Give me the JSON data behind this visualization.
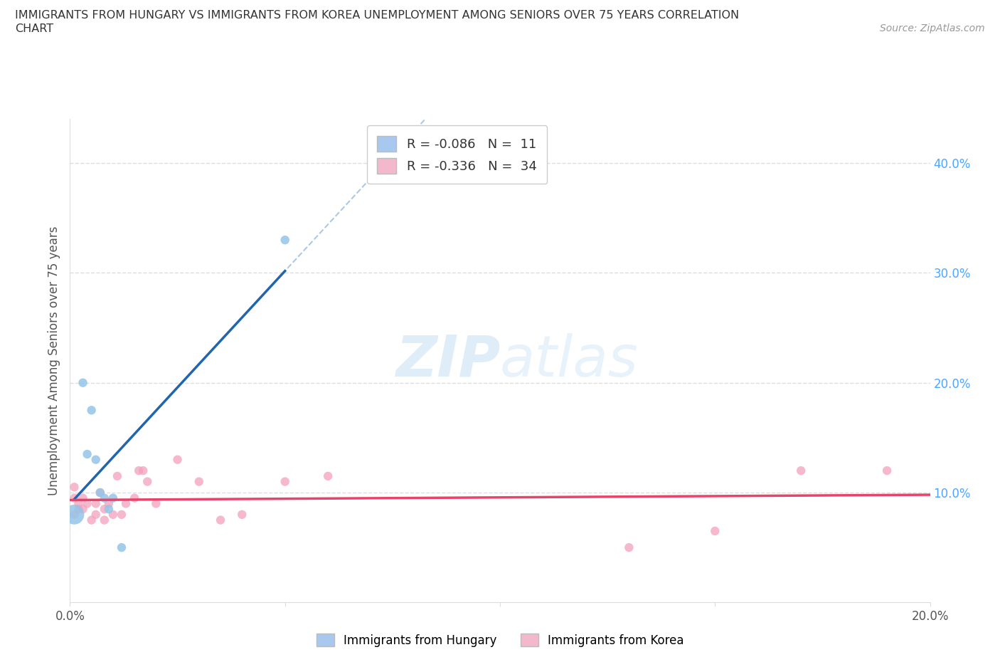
{
  "title_line1": "IMMIGRANTS FROM HUNGARY VS IMMIGRANTS FROM KOREA UNEMPLOYMENT AMONG SENIORS OVER 75 YEARS CORRELATION",
  "title_line2": "CHART",
  "source_text": "Source: ZipAtlas.com",
  "ylabel": "Unemployment Among Seniors over 75 years",
  "xlim": [
    0.0,
    0.2
  ],
  "ylim": [
    0.0,
    0.44
  ],
  "legend_color1": "#a8c8f0",
  "legend_color2": "#f4b8cc",
  "watermark_zip": "ZIP",
  "watermark_atlas": "atlas",
  "hungary_color": "#93c5e8",
  "korea_color": "#f4a0bc",
  "trend_hungary_color": "#2166ac",
  "trend_korea_color": "#e8436a",
  "dashed_color": "#99bbdd",
  "grid_color": "#dddddd",
  "hungary_x": [
    0.001,
    0.003,
    0.004,
    0.005,
    0.006,
    0.007,
    0.008,
    0.009,
    0.01,
    0.012,
    0.05
  ],
  "hungary_y": [
    0.08,
    0.2,
    0.135,
    0.175,
    0.13,
    0.1,
    0.095,
    0.085,
    0.095,
    0.05,
    0.33
  ],
  "hungary_size": [
    400,
    80,
    80,
    80,
    80,
    80,
    80,
    80,
    80,
    80,
    80
  ],
  "korea_x": [
    0.001,
    0.001,
    0.001,
    0.002,
    0.002,
    0.003,
    0.003,
    0.004,
    0.005,
    0.006,
    0.006,
    0.007,
    0.008,
    0.008,
    0.009,
    0.01,
    0.011,
    0.012,
    0.013,
    0.015,
    0.016,
    0.017,
    0.018,
    0.02,
    0.025,
    0.03,
    0.035,
    0.04,
    0.05,
    0.06,
    0.13,
    0.15,
    0.17,
    0.19
  ],
  "korea_y": [
    0.08,
    0.095,
    0.105,
    0.085,
    0.09,
    0.085,
    0.095,
    0.09,
    0.075,
    0.08,
    0.09,
    0.1,
    0.075,
    0.085,
    0.09,
    0.08,
    0.115,
    0.08,
    0.09,
    0.095,
    0.12,
    0.12,
    0.11,
    0.09,
    0.13,
    0.11,
    0.075,
    0.08,
    0.11,
    0.115,
    0.05,
    0.065,
    0.12,
    0.12
  ],
  "korea_size": [
    80,
    80,
    80,
    80,
    80,
    80,
    80,
    80,
    80,
    80,
    80,
    80,
    80,
    80,
    80,
    80,
    80,
    80,
    80,
    80,
    80,
    80,
    80,
    80,
    80,
    80,
    80,
    80,
    80,
    80,
    80,
    80,
    80,
    80
  ]
}
